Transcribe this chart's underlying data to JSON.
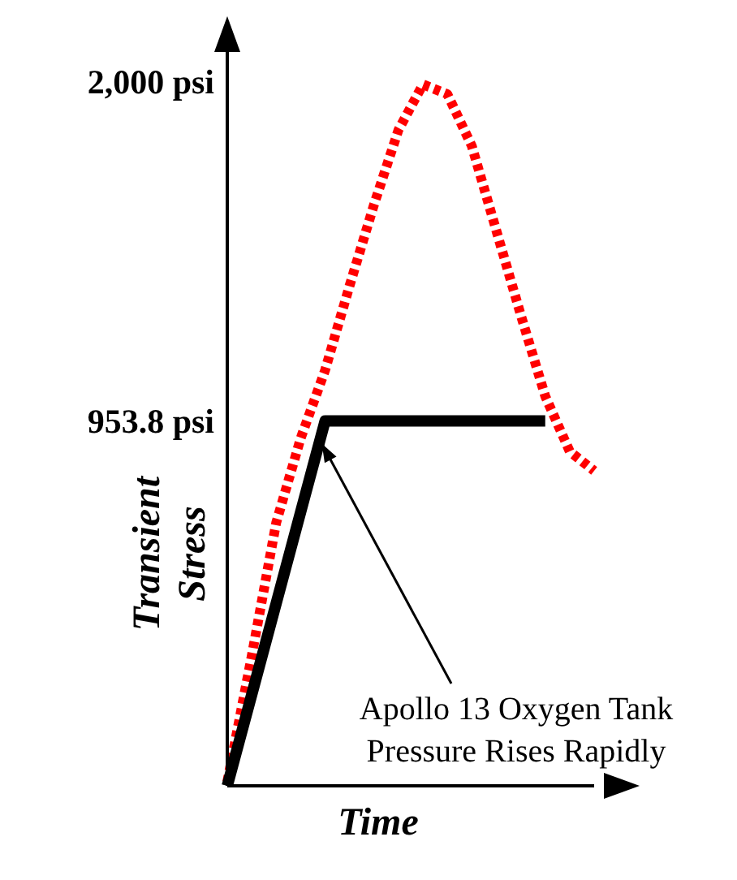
{
  "chart_data": {
    "type": "line",
    "xlabel": "Time",
    "ylabel": "Transient Stress",
    "categories": [
      null,
      null,
      null,
      null,
      null,
      null,
      null,
      null,
      null,
      null,
      null,
      null,
      null,
      null,
      null,
      null
    ],
    "ylim": [
      -170,
      2160
    ],
    "yticks": [
      {
        "value": 953.8,
        "label": "953.8 psi"
      },
      {
        "value": 2000,
        "label": "2,000 psi"
      }
    ],
    "tick_labels": "y",
    "grid": false,
    "legend": false,
    "marker": "none",
    "series": [
      {
        "color": "#ff0000",
        "line_style": "dotted",
        "values": [
          -158,
          230,
          640,
          900,
          1110,
          1370,
          1620,
          1850,
          1990,
          1960,
          1800,
          1540,
          1280,
          1030,
          860,
          800
        ]
      },
      {
        "color": "#000000",
        "line_style": "solid",
        "values": [
          -170,
          111,
          392,
          673,
          953.8,
          953.8,
          953.8,
          953.8,
          953.8,
          953.8,
          953.8,
          953.8,
          953.8,
          953.8,
          null,
          null
        ]
      }
    ],
    "annotations": [
      "Apollo 13 Oxygen Tank Pressure Rises Rapidly"
    ]
  }
}
